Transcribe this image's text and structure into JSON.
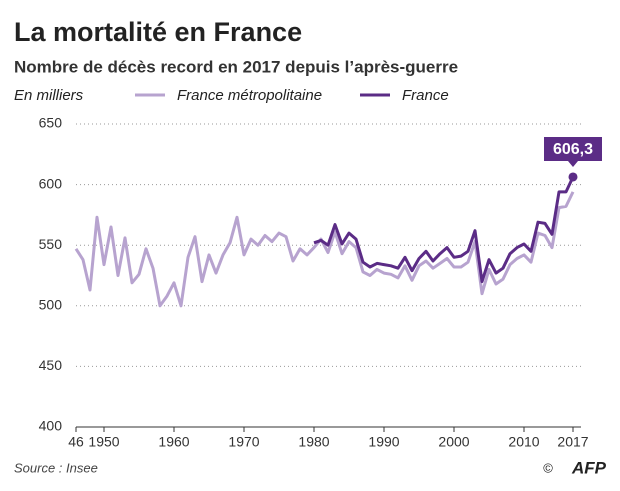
{
  "chart_data": {
    "type": "line",
    "title": "La mortalité en France",
    "subtitle": "Nombre de décès record en 2017 depuis l’après-guerre",
    "y_label": "En milliers",
    "source": "Source : Insee",
    "credit": "AFP",
    "x": [
      1946,
      1947,
      1948,
      1949,
      1950,
      1951,
      1952,
      1953,
      1954,
      1955,
      1956,
      1957,
      1958,
      1959,
      1960,
      1961,
      1962,
      1963,
      1964,
      1965,
      1966,
      1967,
      1968,
      1969,
      1970,
      1971,
      1972,
      1973,
      1974,
      1975,
      1976,
      1977,
      1978,
      1979,
      1980,
      1981,
      1982,
      1983,
      1984,
      1985,
      1986,
      1987,
      1988,
      1989,
      1990,
      1991,
      1992,
      1993,
      1994,
      1995,
      1996,
      1997,
      1998,
      1999,
      2000,
      2001,
      2002,
      2003,
      2004,
      2005,
      2006,
      2007,
      2008,
      2009,
      2010,
      2011,
      2012,
      2013,
      2014,
      2015,
      2016,
      2017
    ],
    "series": [
      {
        "name": "France métropolitaine",
        "color": "#b7a3cf",
        "values": [
          547,
          538,
          513,
          573,
          534,
          565,
          525,
          556,
          519,
          526,
          547,
          531,
          500,
          508,
          519,
          500,
          540,
          557,
          520,
          542,
          527,
          542,
          552,
          573,
          542,
          555,
          550,
          558,
          553,
          560,
          557,
          537,
          547,
          542,
          548,
          555,
          544,
          561,
          543,
          553,
          548,
          528,
          525,
          530,
          527,
          526,
          523,
          533,
          521,
          533,
          537,
          531,
          535,
          539,
          532,
          532,
          536,
          553,
          510,
          530,
          518,
          522,
          534,
          539,
          542,
          536,
          560,
          558,
          548,
          581,
          582,
          594
        ]
      },
      {
        "name": "France",
        "color": "#5b2c86",
        "values": [
          null,
          null,
          null,
          null,
          null,
          null,
          null,
          null,
          null,
          null,
          null,
          null,
          null,
          null,
          null,
          null,
          null,
          null,
          null,
          null,
          null,
          null,
          null,
          null,
          null,
          null,
          null,
          null,
          null,
          null,
          null,
          null,
          null,
          null,
          552,
          554,
          550,
          567,
          551,
          560,
          555,
          536,
          532,
          535,
          534,
          533,
          531,
          540,
          529,
          539,
          545,
          537,
          543,
          548,
          540,
          541,
          545,
          562,
          520,
          538,
          527,
          531,
          543,
          548,
          551,
          545,
          569,
          568,
          559,
          594,
          594,
          606.3
        ],
        "value_labels": [
          null,
          null,
          null,
          null,
          null,
          null,
          null,
          null,
          null,
          null,
          null,
          null,
          null,
          null,
          null,
          null,
          null,
          null,
          null,
          null,
          null,
          null,
          null,
          null,
          null,
          null,
          null,
          null,
          null,
          null,
          null,
          null,
          null,
          null,
          null,
          null,
          null,
          null,
          null,
          null,
          null,
          null,
          null,
          null,
          null,
          null,
          null,
          null,
          null,
          null,
          null,
          null,
          null,
          null,
          null,
          null,
          null,
          null,
          null,
          null,
          null,
          null,
          null,
          null,
          null,
          null,
          null,
          null,
          null,
          null,
          null,
          "606,3"
        ]
      }
    ],
    "xlim": [
      1946,
      2017
    ],
    "xticks": [
      {
        "value": 1946,
        "label": "46"
      },
      1950,
      1960,
      1970,
      1980,
      1990,
      2000,
      2010,
      2017
    ],
    "ylim": [
      400,
      650
    ],
    "yticks": [
      400,
      450,
      500,
      550,
      600,
      650
    ],
    "grid": true
  }
}
